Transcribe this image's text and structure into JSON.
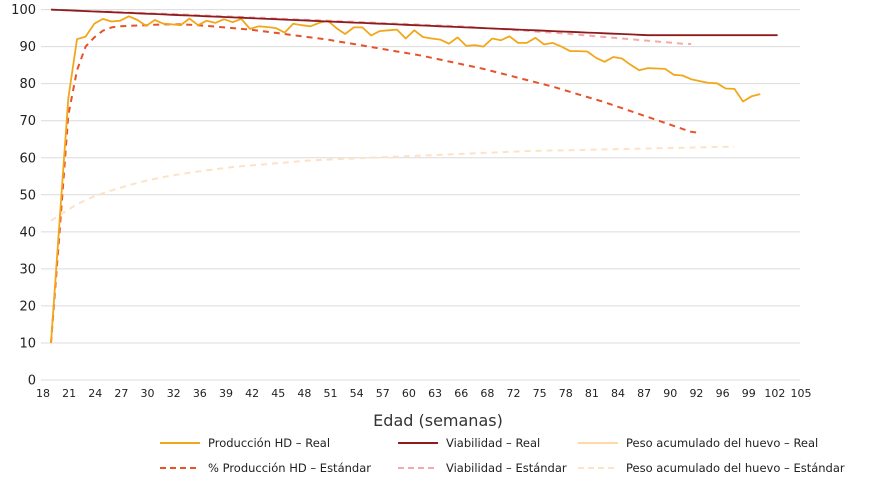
{
  "chart_data": {
    "type": "line",
    "title": "",
    "xlabel": "Edad (semanas)",
    "ylabel": "",
    "ylim": [
      0,
      100
    ],
    "yticks": [
      0,
      10,
      20,
      30,
      40,
      50,
      60,
      70,
      80,
      90,
      100
    ],
    "x_tick_labels": [
      "18",
      "21",
      "24",
      "27",
      "30",
      "32",
      "36",
      "39",
      "42",
      "45",
      "48",
      "51",
      "54",
      "57",
      "60",
      "63",
      "66",
      "68",
      "72",
      "75",
      "78",
      "81",
      "84",
      "87",
      "90",
      "92",
      "96",
      "99",
      "102",
      "105"
    ],
    "x_tick_every": 3,
    "grid": true,
    "legend_position": "bottom",
    "series": [
      {
        "name": "Producción HD – Real",
        "color": "#F2A71B",
        "dash": false,
        "values": [
          10,
          43,
          76,
          92,
          92.7,
          96.2,
          97.5,
          96.8,
          97,
          98.2,
          97.2,
          95.6,
          97.2,
          96.2,
          96,
          95.8,
          97.6,
          95.8,
          97,
          96.4,
          97.4,
          96.6,
          97.5,
          94.8,
          95.5,
          95.3,
          95,
          93.8,
          96.2,
          95.8,
          95.5,
          96.4,
          97,
          95,
          93.4,
          95.2,
          95.2,
          93,
          94.2,
          94.4,
          94.6,
          92.2,
          94.4,
          92.6,
          92.2,
          91.9,
          90.8,
          92.5,
          90.2,
          90.4,
          90,
          92.2,
          91.7,
          92.8,
          91,
          91,
          92.4,
          90.6,
          91,
          90,
          88.8,
          88.8,
          88.7,
          87,
          85.9,
          87.2,
          86.8,
          85.1,
          83.6,
          84.2,
          84.1,
          84,
          82.4,
          82.2,
          81.2,
          80.7,
          80.2,
          80.1,
          78.7,
          78.6,
          75.2,
          76.6,
          77.2
        ]
      },
      {
        "name": "Viabilidad – Real",
        "color": "#8E1B1E",
        "dash": false,
        "values": [
          100,
          99.9,
          99.8,
          99.7,
          99.6,
          99.5,
          99.4,
          99.3,
          99.2,
          99.1,
          99,
          98.9,
          98.8,
          98.7,
          98.6,
          98.5,
          98.4,
          98.3,
          98.2,
          98.1,
          98,
          97.9,
          97.8,
          97.7,
          97.6,
          97.5,
          97.4,
          97.3,
          97.2,
          97.1,
          97,
          96.9,
          96.8,
          96.7,
          96.6,
          96.5,
          96.4,
          96.3,
          96.2,
          96.1,
          96,
          95.9,
          95.8,
          95.7,
          95.6,
          95.5,
          95.4,
          95.3,
          95.2,
          95.1,
          95,
          94.9,
          94.8,
          94.7,
          94.6,
          94.5,
          94.4,
          94.3,
          94.2,
          94.1,
          94,
          93.9,
          93.8,
          93.7,
          93.6,
          93.5,
          93.4,
          93.3,
          93.2,
          93.1,
          93.1,
          93.1,
          93.1,
          93.1,
          93.1,
          93.1,
          93.1,
          93.1,
          93.1,
          93.1,
          93.1,
          93.1,
          93.1,
          93.1,
          93.1
        ]
      },
      {
        "name": "Peso acumulado del huevo – Real",
        "color": "#FDD9A8",
        "dash": false,
        "values": []
      },
      {
        "name": "% Producción HD – Estándar",
        "color": "#E6532B",
        "dash": true,
        "values": [
          10,
          40,
          71.5,
          83.6,
          90,
          92.5,
          94.3,
          95.2,
          95.5,
          95.6,
          95.7,
          95.8,
          95.9,
          96,
          96,
          96,
          95.9,
          95.8,
          95.6,
          95.4,
          95.2,
          95,
          94.8,
          94.6,
          94.3,
          94,
          93.7,
          93.4,
          93.1,
          92.8,
          92.5,
          92.2,
          91.9,
          91.5,
          91.1,
          90.7,
          90.3,
          89.9,
          89.5,
          89.1,
          88.7,
          88.3,
          87.9,
          87.5,
          87,
          86.5,
          86,
          85.5,
          85,
          84.5,
          84,
          83.4,
          82.8,
          82.2,
          81.6,
          81,
          80.4,
          79.8,
          79.2,
          78.5,
          77.8,
          77.1,
          76.4,
          75.7,
          75,
          74.2,
          73.4,
          72.6,
          71.8,
          71,
          70.2,
          69.4,
          68.6,
          67.8,
          67,
          66.7
        ]
      },
      {
        "name": "Viabilidad – Estándar",
        "color": "#F5A9A9",
        "dash": true,
        "values": [
          100,
          99.9,
          99.8,
          99.7,
          99.6,
          99.5,
          99.45,
          99.4,
          99.3,
          99.2,
          99.1,
          99,
          98.95,
          98.9,
          98.8,
          98.7,
          98.6,
          98.5,
          98.4,
          98.3,
          98.2,
          98.1,
          98,
          97.9,
          97.8,
          97.7,
          97.6,
          97.5,
          97.4,
          97.3,
          97.2,
          97.1,
          97,
          96.9,
          96.8,
          96.7,
          96.6,
          96.5,
          96.4,
          96.3,
          96.2,
          96.1,
          96,
          95.9,
          95.8,
          95.7,
          95.6,
          95.5,
          95.4,
          95.2,
          95,
          94.9,
          94.8,
          94.6,
          94.4,
          94.3,
          94.1,
          93.9,
          93.8,
          93.6,
          93.4,
          93.2,
          93,
          92.8,
          92.6,
          92.4,
          92.2,
          92,
          91.8,
          91.6,
          91.4,
          91.2,
          91,
          90.8,
          90.7
        ]
      },
      {
        "name": "Peso acumulado del huevo – Estándar",
        "color": "#FDE2C6",
        "dash": true,
        "values": [
          43,
          44.5,
          46,
          47.4,
          48.6,
          49.6,
          50.4,
          51.2,
          51.9,
          52.6,
          53.2,
          53.8,
          54.3,
          54.8,
          55.2,
          55.6,
          56,
          56.3,
          56.6,
          56.9,
          57.2,
          57.5,
          57.7,
          57.9,
          58.1,
          58.3,
          58.5,
          58.7,
          58.9,
          59.1,
          59.3,
          59.4,
          59.5,
          59.6,
          59.7,
          59.8,
          59.9,
          60,
          60.1,
          60.2,
          60.3,
          60.4,
          60.5,
          60.6,
          60.7,
          60.8,
          60.9,
          61,
          61.1,
          61.2,
          61.3,
          61.4,
          61.5,
          61.6,
          61.7,
          61.8,
          61.85,
          61.9,
          61.95,
          62,
          62.05,
          62.1,
          62.15,
          62.2,
          62.25,
          62.3,
          62.35,
          62.4,
          62.45,
          62.5,
          62.55,
          62.6,
          62.65,
          62.7,
          62.75,
          62.8,
          62.85,
          62.9,
          62.95,
          63
        ]
      }
    ]
  },
  "legend": [
    {
      "label": "Producción HD – Real"
    },
    {
      "label": "Viabilidad – Real"
    },
    {
      "label": "Peso acumulado del huevo – Real"
    },
    {
      "label": "% Producción HD – Estándar"
    },
    {
      "label": "Viabilidad – Estándar"
    },
    {
      "label": "Peso acumulado del huevo – Estándar"
    }
  ]
}
